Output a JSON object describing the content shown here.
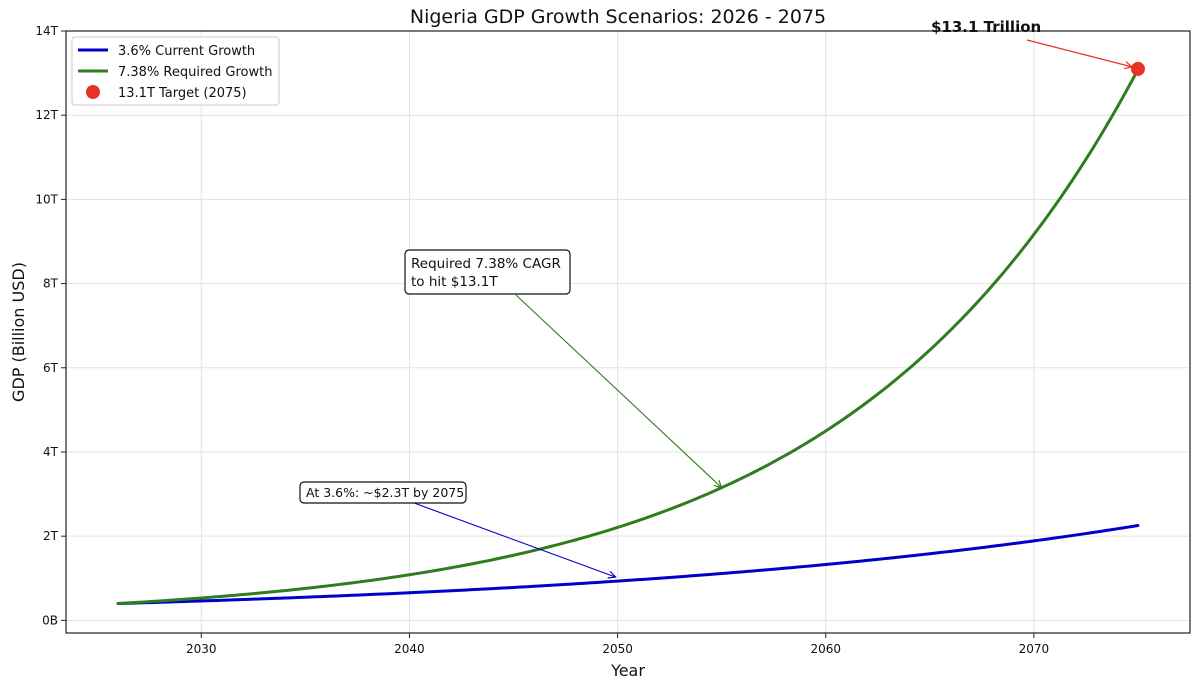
{
  "chart_data": {
    "type": "line",
    "title": "Nigeria GDP Growth Scenarios: 2026 - 2075",
    "xlabel": "Year",
    "ylabel": "GDP (Billion USD)",
    "xlim": [
      2023.5,
      2077.5
    ],
    "ylim": [
      -300,
      14000
    ],
    "grid": true,
    "legend_position": "top-left",
    "x_ticks": [
      {
        "value": 2030,
        "label": "2030"
      },
      {
        "value": 2040,
        "label": "2040"
      },
      {
        "value": 2050,
        "label": "2050"
      },
      {
        "value": 2060,
        "label": "2060"
      },
      {
        "value": 2070,
        "label": "2070"
      }
    ],
    "y_ticks": [
      {
        "value": 0,
        "label": "0B"
      },
      {
        "value": 2000,
        "label": "2T"
      },
      {
        "value": 4000,
        "label": "4T"
      },
      {
        "value": 6000,
        "label": "6T"
      },
      {
        "value": 8000,
        "label": "8T"
      },
      {
        "value": 10000,
        "label": "10T"
      },
      {
        "value": 12000,
        "label": "12T"
      },
      {
        "value": 14000,
        "label": "14T"
      }
    ],
    "series": [
      {
        "name": "3.6% Current Growth",
        "color": "#0000cc",
        "x": [
          2026,
          2030,
          2035,
          2040,
          2045,
          2050,
          2055,
          2060,
          2065,
          2070,
          2075
        ],
        "y": [
          400,
          461,
          550,
          656,
          782,
          933,
          1113,
          1327,
          1583,
          1888,
          2253
        ]
      },
      {
        "name": "7.38% Required Growth",
        "color": "#2e7d1f",
        "x": [
          2026,
          2030,
          2035,
          2040,
          2045,
          2050,
          2055,
          2060,
          2065,
          2070,
          2075
        ],
        "y": [
          400,
          532,
          759,
          1084,
          1547,
          2208,
          3152,
          4499,
          6422,
          9167,
          13085
        ]
      }
    ],
    "target_point": {
      "name": "13.1T Target (2075)",
      "x": 2075,
      "y": 13100,
      "color": "#e63325"
    },
    "annotations": [
      {
        "text": "$13.1 Trillion",
        "color": "#e63325",
        "style": "bold, no box"
      },
      {
        "lines": [
          "Required 7.38% CAGR",
          "to hit $13.1T"
        ],
        "color": "#2e7d1f",
        "points_to": {
          "x": 2055,
          "y": 3152
        }
      },
      {
        "text": "At 3.6%: ~$2.3T by 2075",
        "color": "#0000cc",
        "points_to": {
          "x": 2050,
          "y": 933
        }
      }
    ]
  }
}
